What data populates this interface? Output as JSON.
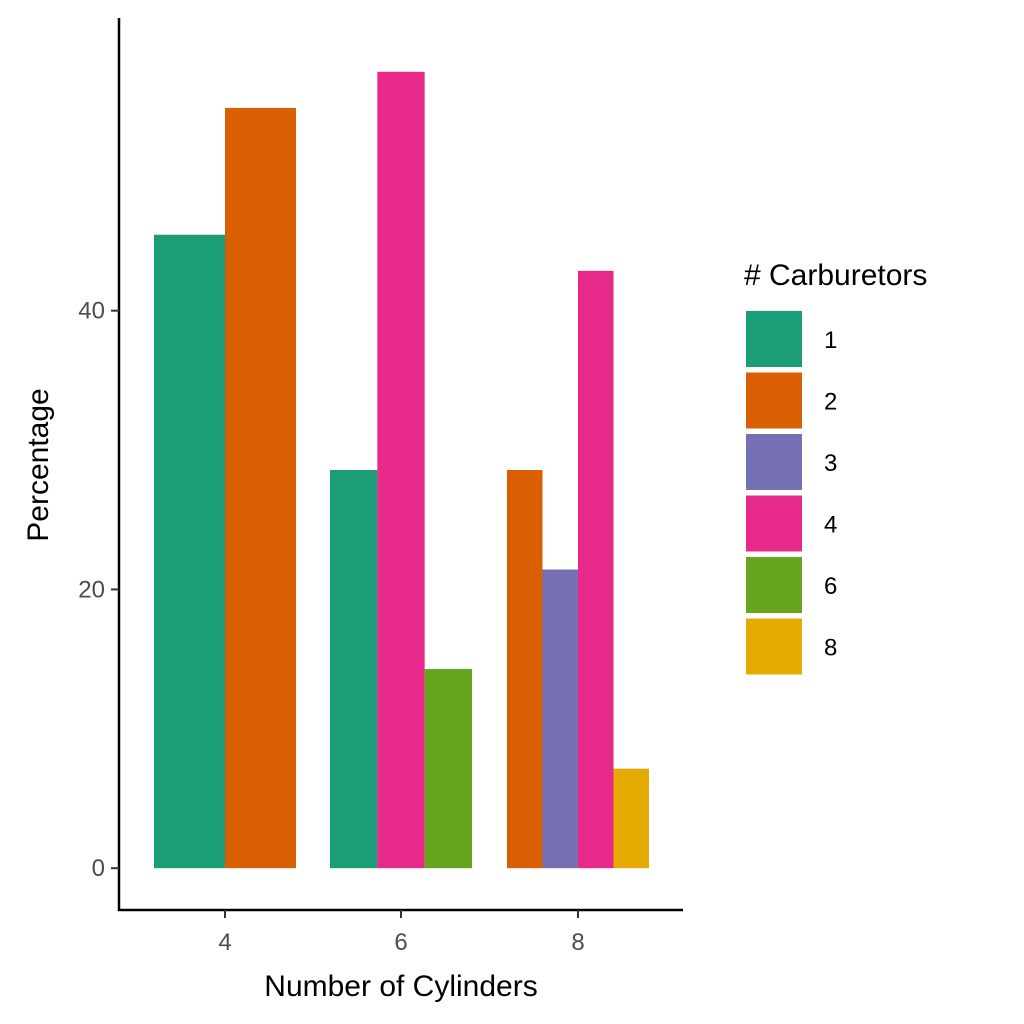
{
  "chart_data": {
    "type": "bar",
    "xlabel": "Number of Cylinders",
    "ylabel": "Percentage",
    "categories": [
      "4",
      "6",
      "8"
    ],
    "ylim": [
      -3,
      61
    ],
    "yticks": [
      0,
      20,
      40
    ],
    "grid": false,
    "legend": {
      "title": "# Carburetors",
      "placement": "right"
    },
    "series": [
      {
        "name": "1",
        "color": "#1b9e77",
        "values": [
          45.45,
          28.57,
          null
        ]
      },
      {
        "name": "2",
        "color": "#d95f02",
        "values": [
          54.55,
          null,
          28.57
        ]
      },
      {
        "name": "3",
        "color": "#7570b3",
        "values": [
          null,
          null,
          21.43
        ]
      },
      {
        "name": "4",
        "color": "#e7298a",
        "values": [
          null,
          57.14,
          42.86
        ]
      },
      {
        "name": "6",
        "color": "#66a61e",
        "values": [
          null,
          14.29,
          null
        ]
      },
      {
        "name": "8",
        "color": "#e6ab02",
        "values": [
          null,
          null,
          7.14
        ]
      }
    ]
  }
}
